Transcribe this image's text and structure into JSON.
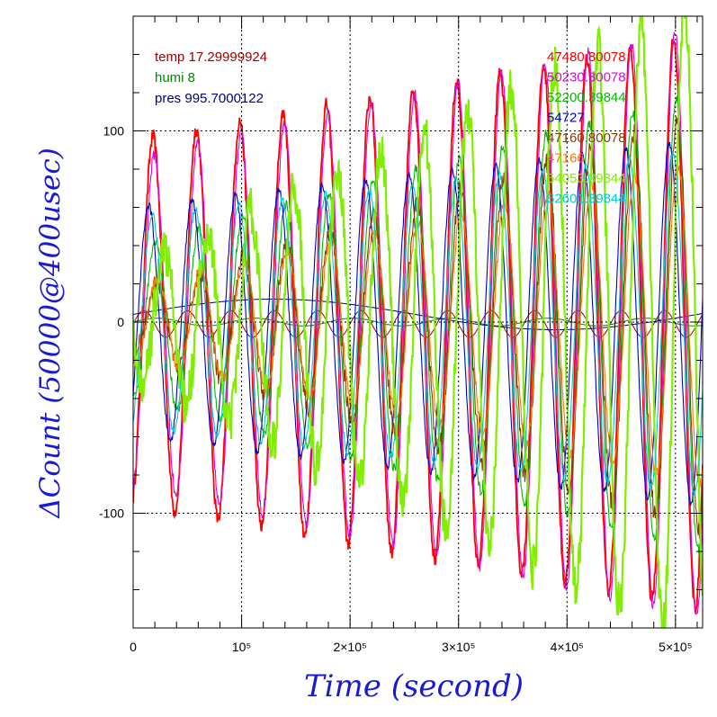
{
  "chart_data": {
    "type": "line",
    "xlabel": "Time (second)",
    "ylabel": "ΔCount (50000@400usec)",
    "xlim": [
      0,
      525000
    ],
    "ylim": [
      -160,
      160
    ],
    "x_ticks": [
      {
        "value": 0,
        "label": "0"
      },
      {
        "value": 100000,
        "label": "10⁵"
      },
      {
        "value": 200000,
        "label": "2×10⁵"
      },
      {
        "value": 300000,
        "label": "3×10⁵"
      },
      {
        "value": 400000,
        "label": "4×10⁵"
      },
      {
        "value": 500000,
        "label": "5×10⁵"
      }
    ],
    "y_ticks": [
      {
        "value": 100,
        "label": "100"
      },
      {
        "value": 0,
        "label": "0"
      },
      {
        "value": -100,
        "label": "-100"
      }
    ],
    "grid": true,
    "info": [
      {
        "text": "temp 17.29999924",
        "color": "#a00000"
      },
      {
        "text": "humi 8",
        "color": "#008800"
      },
      {
        "text": "pres 995.7000122",
        "color": "#00007a"
      }
    ],
    "legend_position": "top-right",
    "series": [
      {
        "name": "47480.80078",
        "color": "#ff0000",
        "amp_start": 95,
        "amp_end": 150,
        "phase": 0.1,
        "noise": 4
      },
      {
        "name": "50230.30078",
        "color": "#e000e0",
        "amp_start": 85,
        "amp_end": 155,
        "phase": 0.13,
        "noise": 3
      },
      {
        "name": "52200.39844",
        "color": "#00bb00",
        "amp_start": 40,
        "amp_end": 120,
        "phase": 0.16,
        "noise": 3
      },
      {
        "name": "54727",
        "color": "#0000cc",
        "amp_start": 60,
        "amp_end": 95,
        "phase": 0.0,
        "noise": 2
      },
      {
        "name": "47160.80078",
        "color": "#8b3a00",
        "amp_start": 15,
        "amp_end": 110,
        "phase": 0.18,
        "noise": 6
      },
      {
        "name": "47166",
        "color": "#ff7700",
        "amp_start": 20,
        "amp_end": 85,
        "phase": 0.2,
        "noise": 3
      },
      {
        "name": "54053.39844",
        "color": "#80ee00",
        "amp_start": 30,
        "amp_end": 170,
        "phase": 0.35,
        "noise": 12
      },
      {
        "name": "52601.39844",
        "color": "#00cccc",
        "amp_start": 55,
        "amp_end": 90,
        "phase": 0.08,
        "noise": 2
      }
    ],
    "env_series": [
      {
        "label": "temp",
        "color": "#a00000",
        "amp": 7,
        "offset": -1,
        "period": 40000
      },
      {
        "label": "humi",
        "color": "#008800",
        "amp": 2,
        "offset": 0,
        "period": 90000
      },
      {
        "label": "pres",
        "color": "#00007a",
        "amp": 8,
        "offset": 4,
        "period": 520000
      }
    ],
    "oscillation_period_s": 40000
  }
}
